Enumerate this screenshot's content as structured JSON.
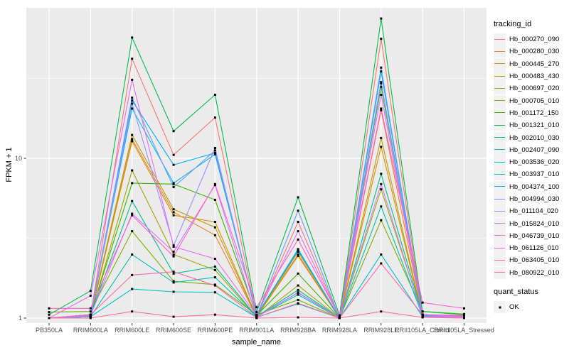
{
  "chart_data": {
    "type": "line",
    "title": "",
    "xlabel": "sample_name",
    "ylabel": "FPKM + 1",
    "y_scale": "log10",
    "ylim": [
      1,
      87
    ],
    "grid": true,
    "legend_position": "right",
    "point_shape": "filled-square",
    "point_color": "#000000",
    "y_ticks": [
      {
        "value": 1,
        "label": "1"
      },
      {
        "value": 10,
        "label": "10"
      }
    ],
    "y_minor_ticks": [
      3.1623,
      31.6228
    ],
    "x_categories": [
      "PB350LA",
      "RRIM600LA",
      "RRIM600LE",
      "RRIM600SE",
      "RRIM600PE",
      "RRIM901LA",
      "RRIM928BA",
      "RRIM928LA",
      "RRIM928LE",
      "RRII105LA_Control",
      "RRII105LA_Stressed"
    ],
    "series": [
      {
        "name": "Hb_000270_090",
        "color": "#F8766D",
        "values": [
          1.0,
          1.03,
          42.0,
          10.5,
          18.0,
          1.03,
          4.0,
          1.0,
          56.0,
          1.05,
          1.03
        ]
      },
      {
        "name": "Hb_000280_030",
        "color": "#EA8331",
        "values": [
          1.0,
          1.02,
          13.2,
          4.6,
          3.3,
          1.02,
          2.5,
          1.0,
          20.0,
          1.03,
          1.02
        ]
      },
      {
        "name": "Hb_000445_270",
        "color": "#D89000",
        "values": [
          1.0,
          1.02,
          12.8,
          4.4,
          4.0,
          1.02,
          2.45,
          1.0,
          11.8,
          1.02,
          1.02
        ]
      },
      {
        "name": "Hb_000483_430",
        "color": "#C09B00",
        "values": [
          1.0,
          1.03,
          14.0,
          4.8,
          3.7,
          1.02,
          2.6,
          1.0,
          13.4,
          1.02,
          1.02
        ]
      },
      {
        "name": "Hb_000697_020",
        "color": "#A3A500",
        "values": [
          1.0,
          1.02,
          8.4,
          2.5,
          2.0,
          1.01,
          1.6,
          1.0,
          6.4,
          1.04,
          1.04
        ]
      },
      {
        "name": "Hb_000705_010",
        "color": "#7CAE00",
        "values": [
          1.09,
          1.1,
          3.5,
          1.7,
          1.62,
          1.05,
          1.3,
          1.0,
          4.1,
          1.1,
          1.06
        ]
      },
      {
        "name": "Hb_001172_150",
        "color": "#39B600",
        "values": [
          1.0,
          1.05,
          7.0,
          6.9,
          5.5,
          1.04,
          1.9,
          1.0,
          28.0,
          1.05,
          1.02
        ]
      },
      {
        "name": "Hb_001321_010",
        "color": "#00BB4E",
        "values": [
          1.05,
          1.48,
          57.0,
          14.8,
          25.0,
          1.09,
          5.7,
          1.04,
          75.0,
          1.1,
          1.05
        ]
      },
      {
        "name": "Hb_002010_030",
        "color": "#00C087",
        "values": [
          1.0,
          1.04,
          5.4,
          1.9,
          2.1,
          1.02,
          1.5,
          1.0,
          8.0,
          1.05,
          1.02
        ]
      },
      {
        "name": "Hb_002407_090",
        "color": "#00C0AF",
        "values": [
          1.0,
          1.02,
          2.5,
          1.67,
          1.8,
          1.02,
          1.4,
          1.0,
          5.0,
          1.03,
          1.02
        ]
      },
      {
        "name": "Hb_003536_020",
        "color": "#00BFC4",
        "values": [
          1.0,
          1.02,
          1.52,
          1.46,
          1.45,
          1.01,
          1.23,
          1.0,
          2.5,
          1.02,
          1.02
        ]
      },
      {
        "name": "Hb_003937_010",
        "color": "#00B8E7",
        "values": [
          1.0,
          1.05,
          20.5,
          7.0,
          10.6,
          1.04,
          2.65,
          1.0,
          30.0,
          1.05,
          1.02
        ]
      },
      {
        "name": "Hb_004374_100",
        "color": "#00ACFC",
        "values": [
          1.0,
          1.05,
          23.0,
          9.1,
          10.8,
          1.04,
          2.7,
          1.0,
          35.0,
          1.05,
          1.02
        ]
      },
      {
        "name": "Hb_004994_030",
        "color": "#619CFF",
        "values": [
          1.0,
          1.05,
          24.0,
          6.6,
          11.2,
          1.03,
          4.7,
          1.0,
          37.0,
          1.04,
          1.02
        ]
      },
      {
        "name": "Hb_011104_020",
        "color": "#9590FF",
        "values": [
          1.0,
          1.02,
          22.0,
          2.85,
          11.6,
          1.02,
          1.44,
          1.0,
          29.5,
          1.02,
          1.02
        ]
      },
      {
        "name": "Hb_015824_010",
        "color": "#C77CFF",
        "values": [
          1.0,
          1.04,
          4.5,
          2.6,
          6.8,
          1.01,
          1.45,
          1.0,
          6.9,
          1.02,
          1.01
        ]
      },
      {
        "name": "Hb_046739_010",
        "color": "#E76BF3",
        "values": [
          1.0,
          1.38,
          31.0,
          2.8,
          2.35,
          1.04,
          3.5,
          1.0,
          25.0,
          1.05,
          1.02
        ]
      },
      {
        "name": "Hb_061126_010",
        "color": "#FF61CC",
        "values": [
          1.15,
          1.15,
          4.4,
          2.43,
          6.9,
          1.17,
          3.1,
          1.02,
          20.5,
          1.25,
          1.15
        ]
      },
      {
        "name": "Hb_063405_010",
        "color": "#FF65AC",
        "values": [
          1.0,
          1.05,
          1.86,
          1.95,
          1.6,
          1.01,
          1.24,
          1.0,
          2.2,
          1.05,
          1.04
        ]
      },
      {
        "name": "Hb_080922_010",
        "color": "#FF6C90",
        "values": [
          1.0,
          1.0,
          1.1,
          1.02,
          1.05,
          1.0,
          1.01,
          1.0,
          1.1,
          1.01,
          1.0
        ]
      }
    ]
  },
  "legend": {
    "tracking_title": "tracking_id",
    "quant_title": "quant_status",
    "quant_items": [
      {
        "label": "OK",
        "marker": "black-square"
      }
    ]
  },
  "theme": {
    "panel_bg": "#EBEBEB",
    "grid_color": "#FFFFFF",
    "tick_color": "#333333",
    "tick_label_color": "#4D4D4D",
    "axis_title_color": "#000000",
    "legend_key_bg": "#F2F2F2"
  }
}
